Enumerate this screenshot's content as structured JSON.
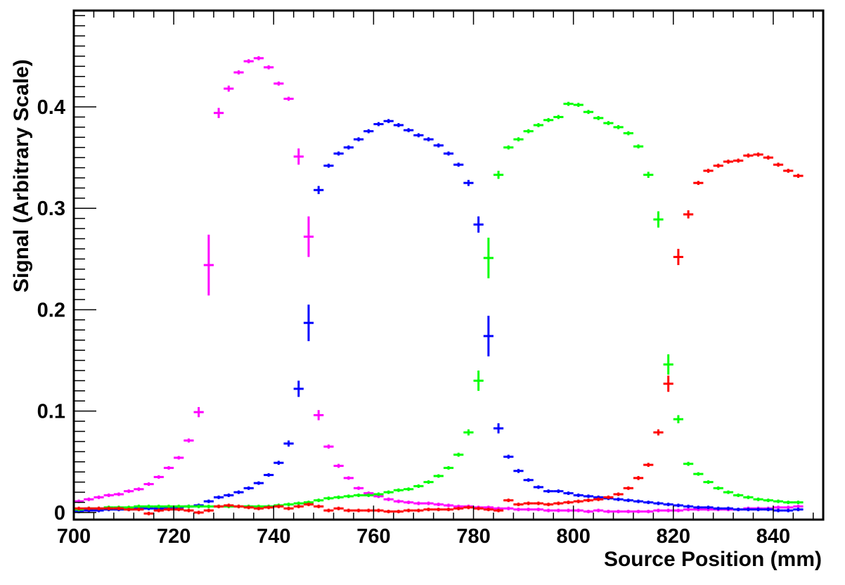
{
  "chart_data": {
    "type": "scatter",
    "title": "",
    "xlabel": "Source Position (mm)",
    "ylabel": "Signal (Arbitrary Scale)",
    "xlim": [
      700,
      850
    ],
    "ylim": [
      -0.007,
      0.495
    ],
    "x_ticks": [
      700,
      720,
      740,
      760,
      780,
      800,
      820,
      840
    ],
    "x_tick_labels": [
      "700",
      "720",
      "740",
      "760",
      "780",
      "800",
      "820",
      "840"
    ],
    "y_ticks": [
      0,
      0.1,
      0.2,
      0.3,
      0.4
    ],
    "y_tick_labels": [
      "0",
      "0.1",
      "0.2",
      "0.3",
      "0.4"
    ],
    "bin_width": 2,
    "grid": false,
    "legend": "none",
    "series": [
      {
        "color": "#ff00ff",
        "x": [
          701,
          703,
          705,
          707,
          709,
          711,
          713,
          715,
          717,
          719,
          721,
          723,
          725,
          727,
          729,
          731,
          733,
          735,
          737,
          739,
          741,
          743,
          745,
          747,
          749,
          751,
          753,
          755,
          757,
          759,
          761,
          763,
          765,
          767,
          769,
          771,
          773,
          775,
          777,
          779,
          781,
          783,
          785,
          787,
          789,
          791,
          793,
          795,
          797,
          799,
          801,
          803,
          805,
          807,
          809,
          811,
          813,
          815,
          817,
          819,
          821,
          823,
          825,
          827,
          829,
          831,
          833,
          835,
          837,
          839,
          841,
          843,
          845
        ],
        "y": [
          0.011,
          0.013,
          0.015,
          0.017,
          0.018,
          0.021,
          0.023,
          0.028,
          0.035,
          0.044,
          0.054,
          0.071,
          0.099,
          0.244,
          0.394,
          0.418,
          0.434,
          0.445,
          0.448,
          0.439,
          0.423,
          0.408,
          0.351,
          0.272,
          0.096,
          0.065,
          0.046,
          0.034,
          0.024,
          0.019,
          0.016,
          0.013,
          0.011,
          0.01,
          0.009,
          0.009,
          0.008,
          0.007,
          0.006,
          0.006,
          0.005,
          0.005,
          0.004,
          0.004,
          0.003,
          0.003,
          0.003,
          0.002,
          0.002,
          0.002,
          0.002,
          0.001,
          0.002,
          0.001,
          0.001,
          0.001,
          0.001,
          0.001,
          0.002,
          0.002,
          0.002,
          0.003,
          0.003,
          0.003,
          0.003,
          0.003,
          0.003,
          0.004,
          0.004,
          0.004,
          0.005,
          0.005,
          0.006
        ],
        "err": [
          0.001,
          0.001,
          0.001,
          0.001,
          0.001,
          0.001,
          0.001,
          0.001,
          0.001,
          0.001,
          0.001,
          0.002,
          0.005,
          0.03,
          0.005,
          0.003,
          0.002,
          0.002,
          0.002,
          0.002,
          0.002,
          0.002,
          0.008,
          0.02,
          0.005,
          0.002,
          0.002,
          0.001,
          0.001,
          0.001,
          0.001,
          0.001,
          0.001,
          0.001,
          0.001,
          0.001,
          0.001,
          0.001,
          0.001,
          0.001,
          0.001,
          0.001,
          0.001,
          0.001,
          0.001,
          0.001,
          0.001,
          0.001,
          0.001,
          0.001,
          0.001,
          0.001,
          0.001,
          0.001,
          0.001,
          0.001,
          0.001,
          0.001,
          0.001,
          0.001,
          0.001,
          0.001,
          0.001,
          0.001,
          0.001,
          0.001,
          0.001,
          0.001,
          0.001,
          0.001,
          0.001,
          0.001,
          0.001
        ]
      },
      {
        "color": "#0000ff",
        "x": [
          701,
          703,
          705,
          707,
          709,
          711,
          713,
          715,
          717,
          719,
          721,
          723,
          725,
          727,
          729,
          731,
          733,
          735,
          737,
          739,
          741,
          743,
          745,
          747,
          749,
          751,
          753,
          755,
          757,
          759,
          761,
          763,
          765,
          767,
          769,
          771,
          773,
          775,
          777,
          779,
          781,
          783,
          785,
          787,
          789,
          791,
          793,
          795,
          797,
          799,
          801,
          803,
          805,
          807,
          809,
          811,
          813,
          815,
          817,
          819,
          821,
          823,
          825,
          827,
          829,
          831,
          833,
          835,
          837,
          839,
          841,
          843,
          845
        ],
        "y": [
          0.001,
          0.002,
          0.002,
          0.003,
          0.003,
          0.003,
          0.004,
          0.004,
          0.004,
          0.005,
          0.005,
          0.006,
          0.007,
          0.011,
          0.015,
          0.017,
          0.02,
          0.024,
          0.029,
          0.037,
          0.049,
          0.068,
          0.122,
          0.187,
          0.318,
          0.342,
          0.354,
          0.36,
          0.368,
          0.376,
          0.383,
          0.386,
          0.382,
          0.377,
          0.372,
          0.368,
          0.362,
          0.354,
          0.343,
          0.325,
          0.284,
          0.174,
          0.083,
          0.055,
          0.041,
          0.032,
          0.025,
          0.021,
          0.021,
          0.019,
          0.017,
          0.016,
          0.015,
          0.014,
          0.013,
          0.012,
          0.011,
          0.01,
          0.009,
          0.008,
          0.007,
          0.006,
          0.005,
          0.005,
          0.004,
          0.004,
          0.003,
          0.003,
          0.003,
          0.003,
          0.002,
          0.002,
          0.003
        ],
        "err": [
          0.001,
          0.001,
          0.001,
          0.001,
          0.001,
          0.001,
          0.001,
          0.001,
          0.001,
          0.001,
          0.001,
          0.001,
          0.001,
          0.001,
          0.001,
          0.001,
          0.001,
          0.001,
          0.001,
          0.001,
          0.002,
          0.003,
          0.008,
          0.018,
          0.004,
          0.002,
          0.002,
          0.002,
          0.002,
          0.002,
          0.002,
          0.002,
          0.002,
          0.002,
          0.002,
          0.002,
          0.002,
          0.002,
          0.002,
          0.003,
          0.008,
          0.02,
          0.005,
          0.002,
          0.002,
          0.001,
          0.001,
          0.001,
          0.001,
          0.001,
          0.001,
          0.001,
          0.001,
          0.001,
          0.001,
          0.001,
          0.001,
          0.001,
          0.001,
          0.001,
          0.001,
          0.001,
          0.001,
          0.001,
          0.001,
          0.001,
          0.001,
          0.001,
          0.001,
          0.001,
          0.001,
          0.001,
          0.001
        ]
      },
      {
        "color": "#00ff00",
        "x": [
          701,
          703,
          705,
          707,
          709,
          711,
          713,
          715,
          717,
          719,
          721,
          723,
          725,
          727,
          729,
          731,
          733,
          735,
          737,
          739,
          741,
          743,
          745,
          747,
          749,
          751,
          753,
          755,
          757,
          759,
          761,
          763,
          765,
          767,
          769,
          771,
          773,
          775,
          777,
          779,
          781,
          783,
          785,
          787,
          789,
          791,
          793,
          795,
          797,
          799,
          801,
          803,
          805,
          807,
          809,
          811,
          813,
          815,
          817,
          819,
          821,
          823,
          825,
          827,
          829,
          831,
          833,
          835,
          837,
          839,
          841,
          843,
          845
        ],
        "y": [
          0.003,
          0.004,
          0.004,
          0.005,
          0.005,
          0.005,
          0.006,
          0.006,
          0.006,
          0.006,
          0.006,
          0.006,
          0.006,
          0.006,
          0.006,
          0.006,
          0.006,
          0.006,
          0.006,
          0.006,
          0.007,
          0.008,
          0.009,
          0.01,
          0.012,
          0.014,
          0.015,
          0.016,
          0.017,
          0.017,
          0.018,
          0.02,
          0.022,
          0.023,
          0.026,
          0.03,
          0.036,
          0.044,
          0.057,
          0.079,
          0.13,
          0.251,
          0.333,
          0.36,
          0.368,
          0.376,
          0.382,
          0.387,
          0.39,
          0.403,
          0.402,
          0.395,
          0.389,
          0.384,
          0.38,
          0.374,
          0.361,
          0.333,
          0.289,
          0.146,
          0.092,
          0.048,
          0.038,
          0.03,
          0.024,
          0.02,
          0.017,
          0.015,
          0.013,
          0.012,
          0.011,
          0.01,
          0.01
        ],
        "err": [
          0.001,
          0.001,
          0.001,
          0.001,
          0.001,
          0.001,
          0.001,
          0.001,
          0.001,
          0.001,
          0.001,
          0.001,
          0.001,
          0.001,
          0.001,
          0.001,
          0.001,
          0.001,
          0.001,
          0.001,
          0.001,
          0.001,
          0.001,
          0.001,
          0.001,
          0.001,
          0.001,
          0.001,
          0.001,
          0.001,
          0.001,
          0.001,
          0.001,
          0.001,
          0.001,
          0.001,
          0.001,
          0.001,
          0.002,
          0.003,
          0.01,
          0.02,
          0.004,
          0.002,
          0.002,
          0.002,
          0.002,
          0.002,
          0.002,
          0.002,
          0.002,
          0.002,
          0.002,
          0.002,
          0.002,
          0.002,
          0.002,
          0.003,
          0.008,
          0.01,
          0.004,
          0.002,
          0.001,
          0.001,
          0.001,
          0.001,
          0.001,
          0.001,
          0.001,
          0.001,
          0.001,
          0.001,
          0.001
        ]
      },
      {
        "color": "#ff0000",
        "x": [
          701,
          703,
          705,
          707,
          709,
          711,
          713,
          715,
          717,
          719,
          721,
          723,
          725,
          727,
          729,
          731,
          733,
          735,
          737,
          739,
          741,
          743,
          745,
          747,
          749,
          751,
          753,
          755,
          757,
          759,
          761,
          763,
          765,
          767,
          769,
          771,
          773,
          775,
          777,
          779,
          781,
          783,
          785,
          787,
          789,
          791,
          793,
          795,
          797,
          799,
          801,
          803,
          805,
          807,
          809,
          811,
          813,
          815,
          817,
          819,
          821,
          823,
          825,
          827,
          829,
          831,
          833,
          835,
          837,
          839,
          841,
          843,
          845
        ],
        "y": [
          0.004,
          0.004,
          0.004,
          0.004,
          0.004,
          0.003,
          0.003,
          -0.001,
          0.002,
          0.003,
          0.003,
          0.002,
          0.0,
          0.002,
          0.006,
          0.007,
          0.006,
          0.005,
          0.004,
          0.005,
          0.006,
          0.004,
          0.006,
          0.008,
          0.006,
          0.002,
          0.004,
          0.002,
          0.002,
          0.002,
          0.002,
          0.001,
          0.001,
          0.002,
          0.002,
          0.003,
          0.003,
          0.003,
          0.004,
          0.005,
          0.004,
          0.003,
          0.002,
          0.012,
          0.008,
          0.009,
          0.009,
          0.008,
          0.009,
          0.01,
          0.011,
          0.012,
          0.013,
          0.015,
          0.018,
          0.024,
          0.034,
          0.047,
          0.079,
          0.127,
          0.252,
          0.294,
          0.325,
          0.337,
          0.342,
          0.346,
          0.347,
          0.352,
          0.353,
          0.35,
          0.343,
          0.337,
          0.332
        ],
        "err": [
          0.001,
          0.001,
          0.001,
          0.001,
          0.001,
          0.001,
          0.001,
          0.001,
          0.001,
          0.001,
          0.001,
          0.001,
          0.001,
          0.001,
          0.001,
          0.001,
          0.001,
          0.001,
          0.001,
          0.001,
          0.001,
          0.001,
          0.001,
          0.001,
          0.001,
          0.001,
          0.001,
          0.001,
          0.001,
          0.001,
          0.001,
          0.001,
          0.001,
          0.001,
          0.001,
          0.001,
          0.001,
          0.001,
          0.001,
          0.001,
          0.001,
          0.001,
          0.001,
          0.001,
          0.001,
          0.001,
          0.001,
          0.001,
          0.001,
          0.001,
          0.001,
          0.001,
          0.001,
          0.001,
          0.001,
          0.001,
          0.002,
          0.002,
          0.003,
          0.008,
          0.008,
          0.004,
          0.002,
          0.002,
          0.002,
          0.002,
          0.002,
          0.002,
          0.002,
          0.002,
          0.002,
          0.002,
          0.002
        ]
      }
    ]
  }
}
